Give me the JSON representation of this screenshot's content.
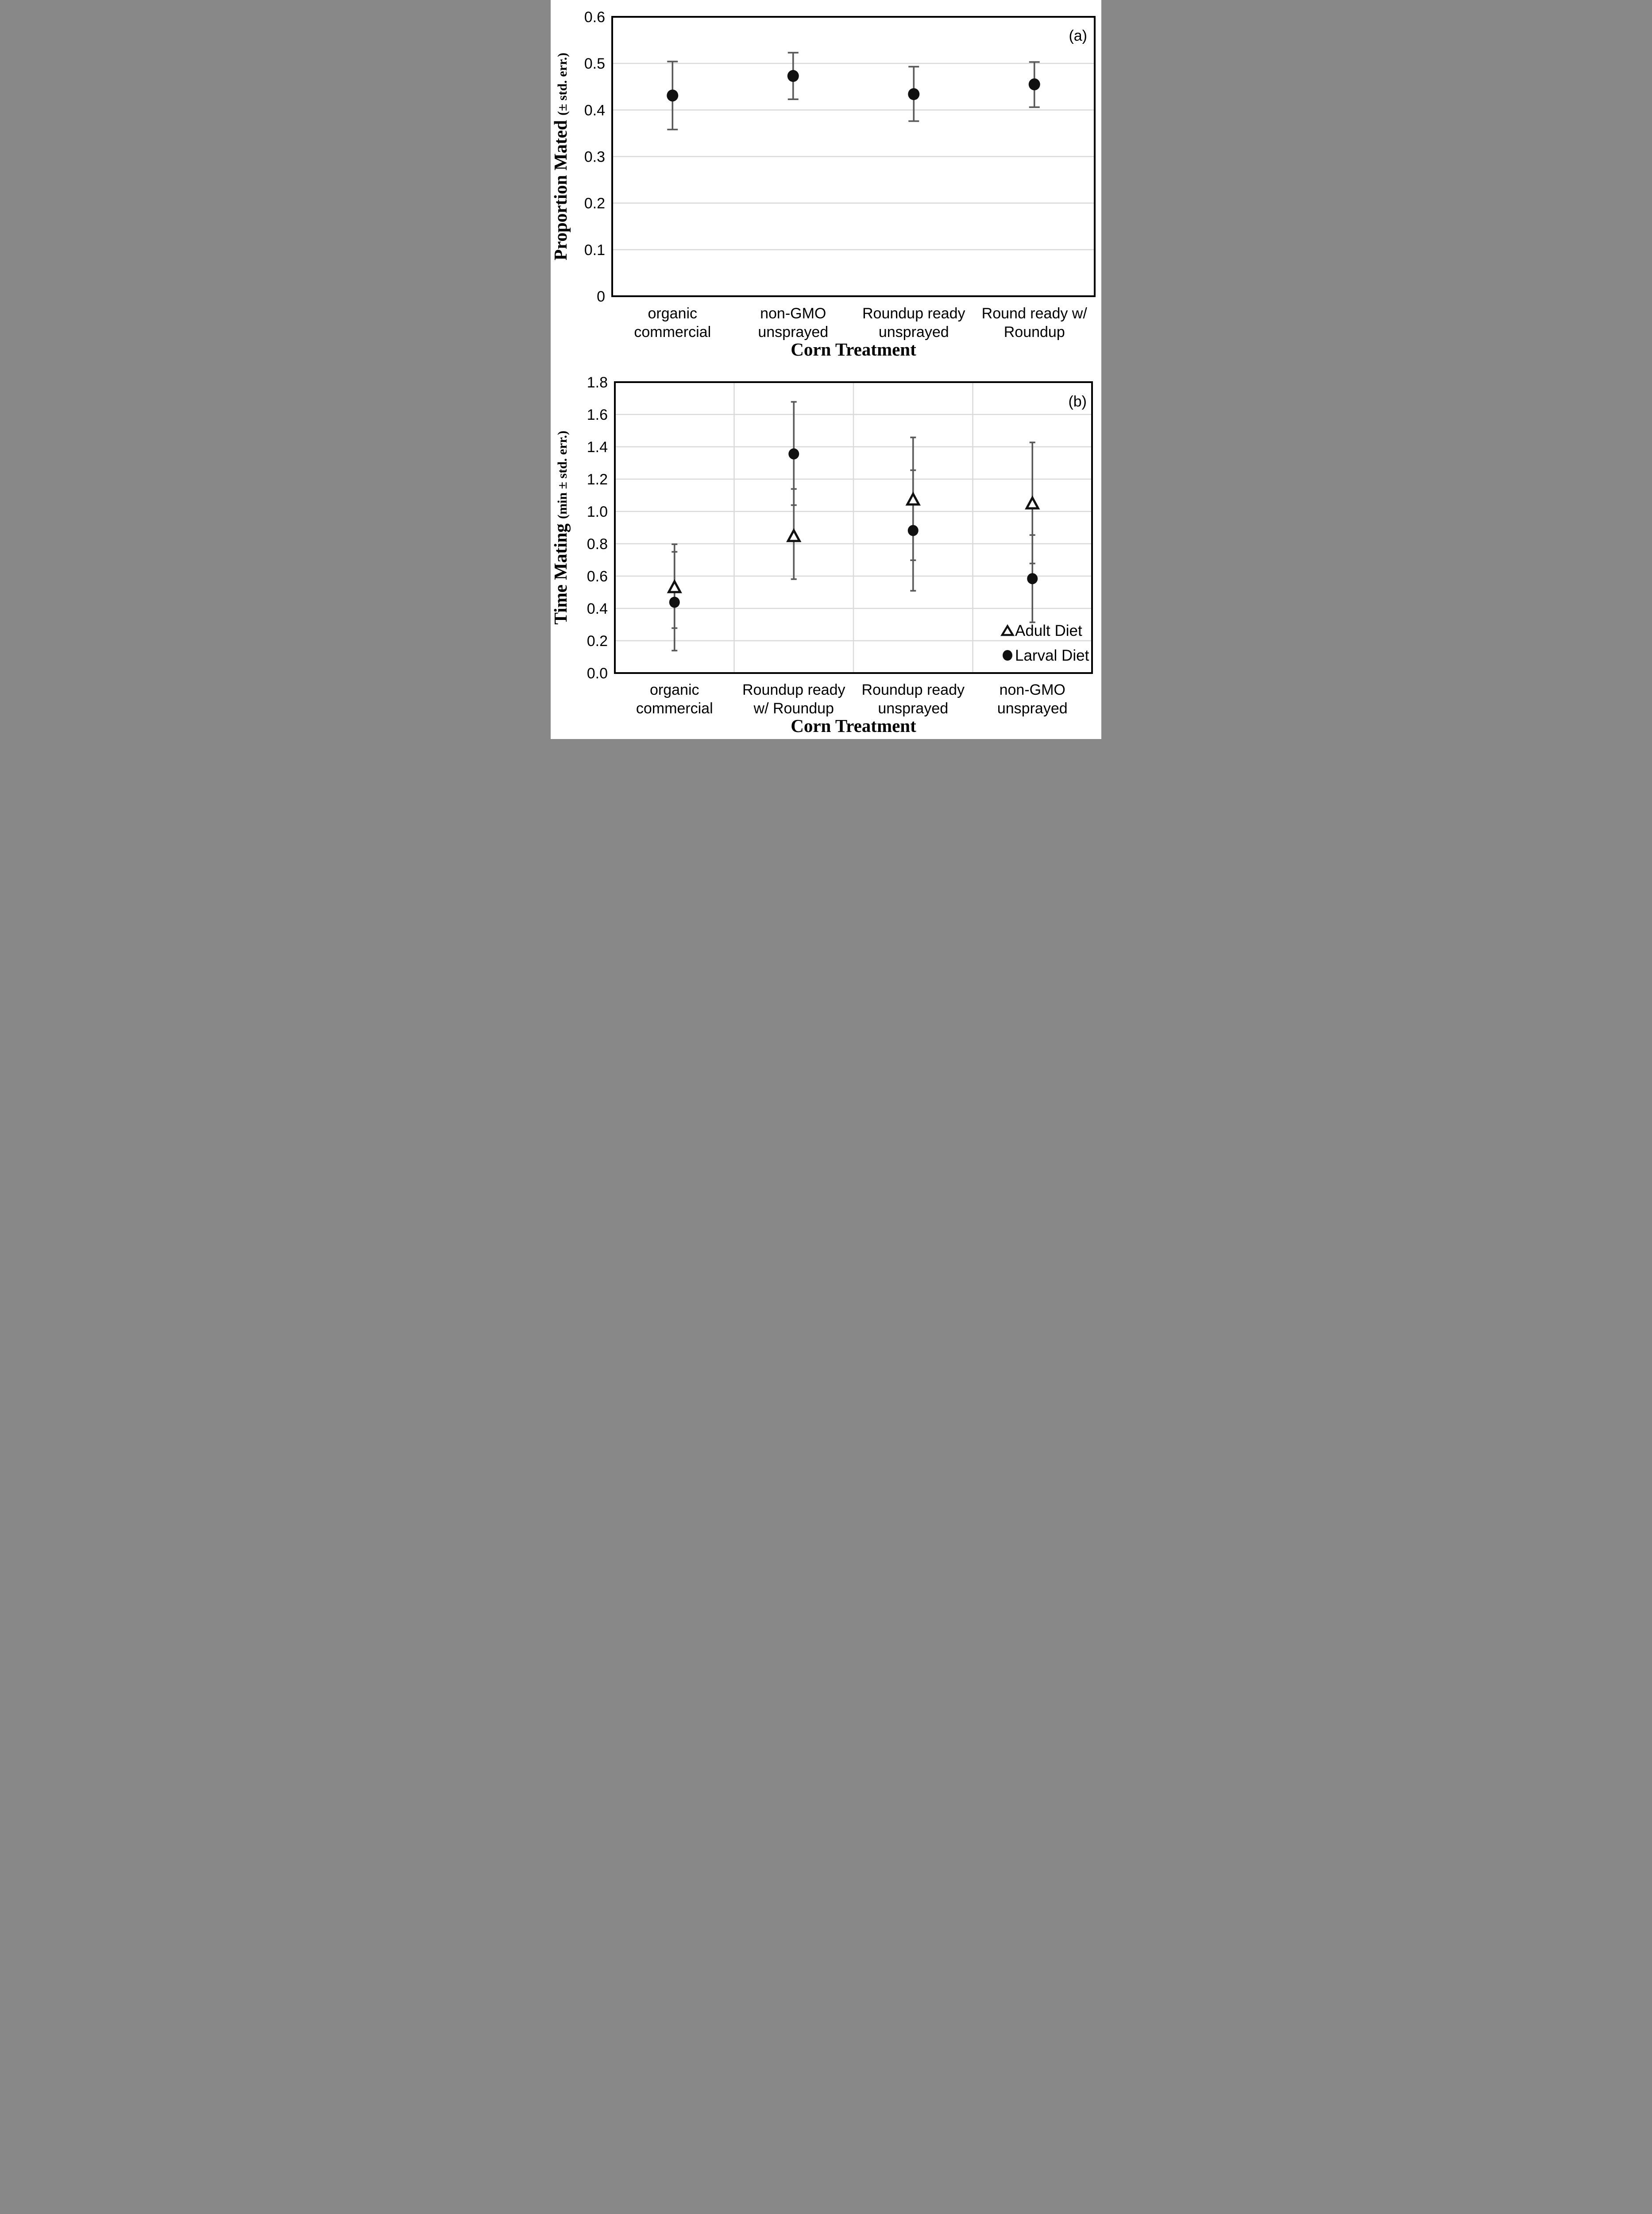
{
  "figure": {
    "background": "#ffffff"
  },
  "colors": {
    "marker": "#111111",
    "triangle_fill": "#ffffff",
    "error_bar": "#595959",
    "gridline": "#d9d9d9",
    "axis": "#000000",
    "text": "#000000"
  },
  "chart_data": [
    {
      "type": "scatter",
      "panel_label": "(a)",
      "ylabel": "Proportion Mated ",
      "ylabel_units": "(± std. err.)",
      "xlabel": "Corn Treatment",
      "ylim": [
        0,
        0.6
      ],
      "ytick_values": [
        0,
        0.1,
        0.2,
        0.3,
        0.4,
        0.5,
        0.6
      ],
      "ytick_labels": [
        "0",
        "0.1",
        "0.2",
        "0.3",
        "0.4",
        "0.5",
        "0.6"
      ],
      "grid": {
        "horizontal": true,
        "vertical": false
      },
      "legend": null,
      "categories": [
        [
          "organic",
          "commercial"
        ],
        [
          "non-GMO",
          "unsprayed"
        ],
        [
          "Roundup ready",
          "unsprayed"
        ],
        [
          "Round ready w/",
          "Roundup"
        ]
      ],
      "series": [
        {
          "name": "Larval Diet",
          "marker": "circle",
          "values": [
            0.431,
            0.473,
            0.434,
            0.455
          ],
          "err_lo": [
            0.358,
            0.423,
            0.376,
            0.406
          ],
          "err_hi": [
            0.504,
            0.523,
            0.493,
            0.503
          ]
        }
      ]
    },
    {
      "type": "scatter",
      "panel_label": "(b)",
      "ylabel": "Time Mating ",
      "ylabel_units": "(min ± std. err.)",
      "xlabel": "Corn Treatment",
      "ylim": [
        0,
        1.8
      ],
      "ytick_values": [
        0,
        0.2,
        0.4,
        0.6,
        0.8,
        1.0,
        1.2,
        1.4,
        1.6,
        1.8
      ],
      "ytick_labels": [
        "0.0",
        "0.2",
        "0.4",
        "0.6",
        "0.8",
        "1.0",
        "1.2",
        "1.4",
        "1.6",
        "1.8"
      ],
      "grid": {
        "horizontal": true,
        "vertical": true
      },
      "legend": {
        "items": [
          {
            "marker": "triangle",
            "label": "Adult Diet"
          },
          {
            "marker": "circle",
            "label": "Larval Diet"
          }
        ]
      },
      "categories": [
        [
          "organic",
          "commercial"
        ],
        [
          "Roundup ready",
          "w/ Roundup"
        ],
        [
          "Roundup ready",
          "unsprayed"
        ],
        [
          "non-GMO",
          "unsprayed"
        ]
      ],
      "series": [
        {
          "name": "Adult Diet",
          "marker": "triangle",
          "values": [
            0.534,
            0.85,
            1.076,
            1.052
          ],
          "err_lo": [
            0.278,
            0.581,
            0.698,
            0.678
          ],
          "err_hi": [
            0.797,
            1.139,
            1.458,
            1.427
          ]
        },
        {
          "name": "Larval Diet",
          "marker": "circle",
          "values": [
            0.438,
            1.356,
            0.882,
            0.584
          ],
          "err_lo": [
            0.139,
            1.039,
            0.509,
            0.314
          ],
          "err_hi": [
            0.75,
            1.678,
            1.255,
            0.854
          ]
        }
      ]
    }
  ]
}
